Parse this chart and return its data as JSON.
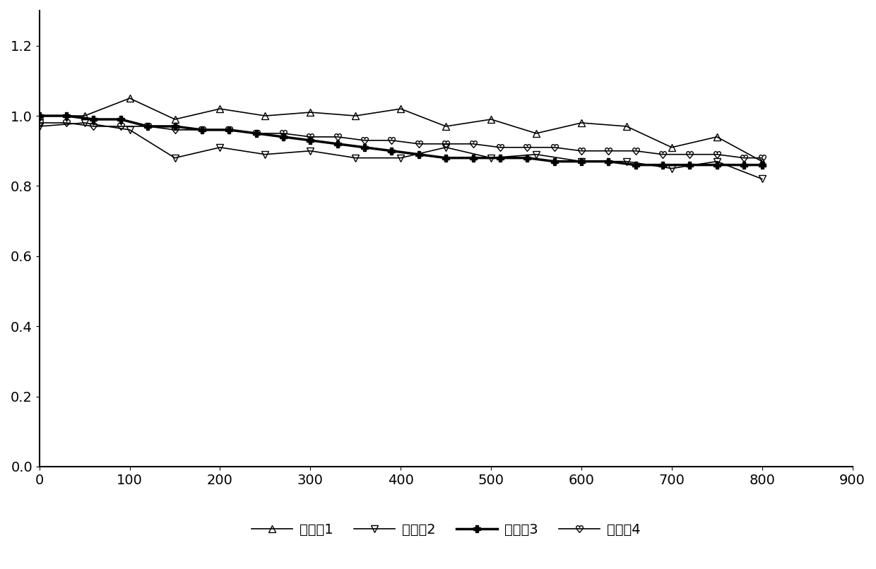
{
  "title": "",
  "xlim": [
    0,
    900
  ],
  "ylim": [
    0,
    1.3
  ],
  "xticks": [
    0,
    100,
    200,
    300,
    400,
    500,
    600,
    700,
    800,
    900
  ],
  "yticks": [
    0,
    0.2,
    0.4,
    0.6,
    0.8,
    1.0,
    1.2
  ],
  "series": [
    {
      "label": "电池组1",
      "color": "#000000",
      "linewidth": 1.2,
      "marker": "^",
      "markersize": 7,
      "fillstyle": "none",
      "linestyle": "-",
      "x": [
        0,
        50,
        100,
        150,
        200,
        250,
        300,
        350,
        400,
        450,
        500,
        550,
        600,
        650,
        700,
        750,
        800
      ],
      "y": [
        1.0,
        1.0,
        1.05,
        0.99,
        1.02,
        1.0,
        1.01,
        1.0,
        1.02,
        0.97,
        0.99,
        0.95,
        0.98,
        0.97,
        0.91,
        0.94,
        0.87
      ]
    },
    {
      "label": "电池组2",
      "color": "#000000",
      "linewidth": 1.2,
      "marker": "v",
      "markersize": 7,
      "fillstyle": "none",
      "linestyle": "-",
      "x": [
        0,
        50,
        100,
        150,
        200,
        250,
        300,
        350,
        400,
        450,
        500,
        550,
        600,
        650,
        700,
        750,
        800
      ],
      "y": [
        0.97,
        0.98,
        0.96,
        0.88,
        0.91,
        0.89,
        0.9,
        0.88,
        0.88,
        0.91,
        0.88,
        0.89,
        0.87,
        0.87,
        0.85,
        0.87,
        0.82
      ]
    },
    {
      "label": "电池组3",
      "color": "#000000",
      "linewidth": 2.5,
      "marker": "P",
      "markersize": 7,
      "fillstyle": "full",
      "linestyle": "-",
      "x": [
        0,
        30,
        60,
        90,
        120,
        150,
        180,
        210,
        240,
        270,
        300,
        330,
        360,
        390,
        420,
        450,
        480,
        510,
        540,
        570,
        600,
        630,
        660,
        690,
        720,
        750,
        780,
        800
      ],
      "y": [
        1.0,
        1.0,
        0.99,
        0.99,
        0.97,
        0.97,
        0.96,
        0.96,
        0.95,
        0.94,
        0.93,
        0.92,
        0.91,
        0.9,
        0.89,
        0.88,
        0.88,
        0.88,
        0.88,
        0.87,
        0.87,
        0.87,
        0.86,
        0.86,
        0.86,
        0.86,
        0.86,
        0.86
      ]
    },
    {
      "label": "电池组4",
      "color": "#000000",
      "linewidth": 1.2,
      "marker": "$♥$",
      "markersize": 7,
      "fillstyle": "none",
      "linestyle": "-",
      "x": [
        0,
        30,
        60,
        90,
        120,
        150,
        180,
        210,
        240,
        270,
        300,
        330,
        360,
        390,
        420,
        450,
        480,
        510,
        540,
        570,
        600,
        630,
        660,
        690,
        720,
        750,
        780,
        800
      ],
      "y": [
        0.98,
        0.98,
        0.97,
        0.97,
        0.97,
        0.96,
        0.96,
        0.96,
        0.95,
        0.95,
        0.94,
        0.94,
        0.93,
        0.93,
        0.92,
        0.92,
        0.92,
        0.91,
        0.91,
        0.91,
        0.9,
        0.9,
        0.9,
        0.89,
        0.89,
        0.89,
        0.88,
        0.88
      ]
    }
  ],
  "legend_labels": [
    "电池组1",
    "电池组2",
    "电池组3",
    "电池组4"
  ],
  "background_color": "#ffffff",
  "fontsize": 14
}
